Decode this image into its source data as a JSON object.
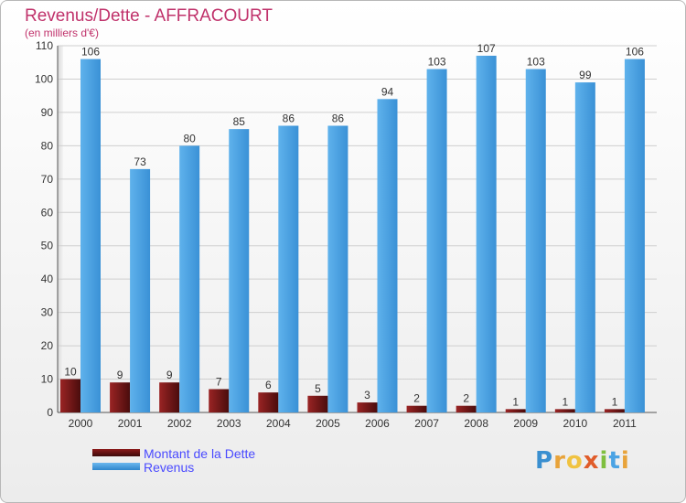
{
  "header": {
    "title": "Revenus/Dette - AFFRACOURT",
    "subtitle": "(en milliers d'€)"
  },
  "legend": {
    "debt_label": "Montant de la Dette",
    "revenue_label": "Revenus"
  },
  "logo": {
    "text": "Proxiti"
  },
  "colors": {
    "debt": "#6e1010",
    "revenue": "#4aa3e4",
    "title": "#c0326b",
    "legend_text": "#4a4aff"
  },
  "chart_data": {
    "type": "bar",
    "title": "Revenus/Dette - AFFRACOURT",
    "ylabel": "(en milliers d'€)",
    "xlabel": "",
    "categories": [
      "2000",
      "2001",
      "2002",
      "2003",
      "2004",
      "2005",
      "2006",
      "2007",
      "2008",
      "2009",
      "2010",
      "2011"
    ],
    "series": [
      {
        "name": "Montant de la Dette",
        "values": [
          10,
          9,
          9,
          7,
          6,
          5,
          3,
          2,
          2,
          1,
          1,
          1
        ]
      },
      {
        "name": "Revenus",
        "values": [
          106,
          73,
          80,
          85,
          86,
          86,
          94,
          103,
          107,
          103,
          99,
          106
        ]
      }
    ],
    "ylim": [
      0,
      110
    ],
    "yticks": [
      0,
      10,
      20,
      30,
      40,
      50,
      60,
      70,
      80,
      90,
      100,
      110
    ],
    "grid": true,
    "legend_position": "bottom-left"
  }
}
